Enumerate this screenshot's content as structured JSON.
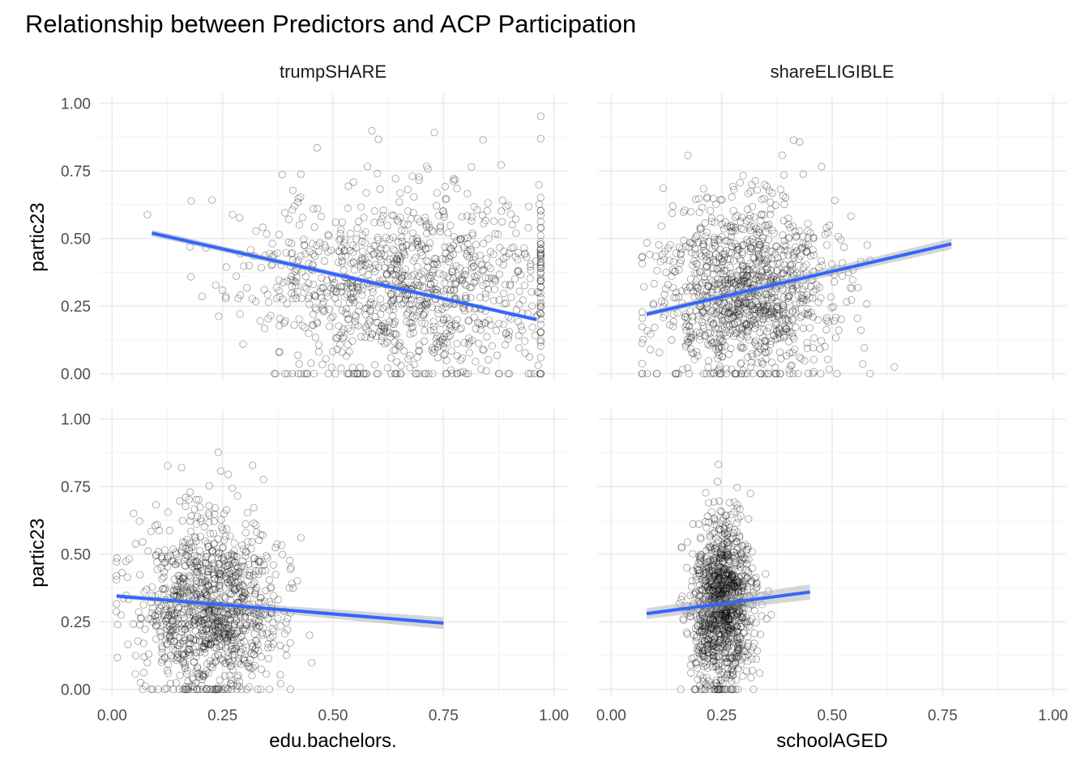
{
  "chart_data": {
    "type": "scatter",
    "title": "Relationship between Predictors and ACP Participation",
    "facet_layout": "2x2",
    "x_ticks": [
      "0.00",
      "0.25",
      "0.50",
      "0.75",
      "1.00"
    ],
    "y_ticks": [
      "0.00",
      "0.25",
      "0.50",
      "0.75",
      "1.00"
    ],
    "xlim": [
      -0.03,
      1.03
    ],
    "ylim": [
      -0.025,
      1.035
    ],
    "ylabel": "partic23",
    "xlabels": [
      "edu.bachelors.",
      "schoolAGED"
    ],
    "grid": true,
    "point_style": "open circle, black, semi-transparent",
    "fit_color": "#3366ff",
    "band_color": "#999999",
    "panels": [
      {
        "strip": "trumpSHARE",
        "x_range": [
          0.08,
          0.97
        ],
        "fit": {
          "x": [
            0.09,
            0.96
          ],
          "y": [
            0.52,
            0.2
          ],
          "se": [
            0.012,
            0.007
          ]
        },
        "points": {
          "n": 1100,
          "seed": 11,
          "x_mean": 0.66,
          "x_sd": 0.18,
          "y_mean": 0.33,
          "y_sd": 0.18
        }
      },
      {
        "strip": "shareELIGIBLE",
        "x_range": [
          0.07,
          0.78
        ],
        "fit": {
          "x": [
            0.08,
            0.77
          ],
          "y": [
            0.22,
            0.48
          ],
          "se": [
            0.01,
            0.02
          ]
        },
        "points": {
          "n": 1100,
          "seed": 23,
          "x_mean": 0.3,
          "x_sd": 0.1,
          "y_mean": 0.3,
          "y_sd": 0.17
        }
      },
      {
        "strip": "",
        "x_range": [
          0.01,
          0.76
        ],
        "fit": {
          "x": [
            0.01,
            0.75
          ],
          "y": [
            0.345,
            0.245
          ],
          "se": [
            0.008,
            0.022
          ]
        },
        "points": {
          "n": 1100,
          "seed": 37,
          "x_mean": 0.22,
          "x_sd": 0.08,
          "y_mean": 0.3,
          "y_sd": 0.17
        }
      },
      {
        "strip": "",
        "x_range": [
          0.07,
          0.46
        ],
        "fit": {
          "x": [
            0.08,
            0.45
          ],
          "y": [
            0.28,
            0.36
          ],
          "se": [
            0.02,
            0.028
          ]
        },
        "points": {
          "n": 1100,
          "seed": 51,
          "x_mean": 0.25,
          "x_sd": 0.035,
          "y_mean": 0.3,
          "y_sd": 0.16
        }
      }
    ]
  }
}
